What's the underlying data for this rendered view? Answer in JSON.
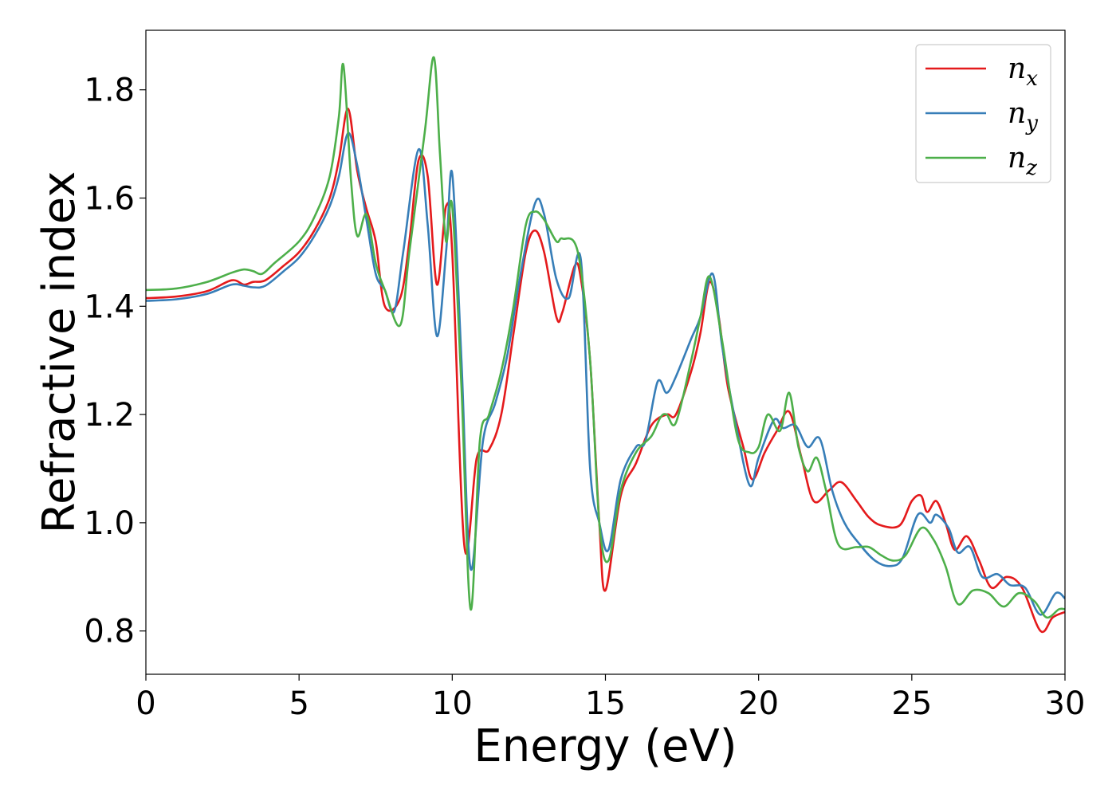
{
  "chart_data": {
    "type": "line",
    "title": "",
    "xlabel": "Energy (eV)",
    "ylabel": "Refractive index",
    "xlim": [
      0,
      30
    ],
    "ylim": [
      0.72,
      1.91
    ],
    "xticks": [
      0,
      5,
      10,
      15,
      20,
      25,
      30
    ],
    "xtick_labels": [
      "0",
      "5",
      "10",
      "15",
      "20",
      "25",
      "30"
    ],
    "yticks": [
      0.8,
      1.0,
      1.2,
      1.4,
      1.6,
      1.8
    ],
    "ytick_labels": [
      "0.8",
      "1.0",
      "1.2",
      "1.4",
      "1.6",
      "1.8"
    ],
    "grid": false,
    "legend_position": "top-right",
    "series": [
      {
        "name": "n",
        "subscript": "x",
        "color": "#e41a1c",
        "points": [
          [
            0,
            1.415
          ],
          [
            1,
            1.418
          ],
          [
            2,
            1.428
          ],
          [
            2.8,
            1.448
          ],
          [
            3.2,
            1.44
          ],
          [
            3.5,
            1.445
          ],
          [
            3.9,
            1.448
          ],
          [
            4.5,
            1.475
          ],
          [
            5,
            1.5
          ],
          [
            5.5,
            1.54
          ],
          [
            6,
            1.6
          ],
          [
            6.3,
            1.67
          ],
          [
            6.6,
            1.765
          ],
          [
            6.9,
            1.65
          ],
          [
            7.2,
            1.58
          ],
          [
            7.5,
            1.52
          ],
          [
            7.8,
            1.4
          ],
          [
            8.3,
            1.415
          ],
          [
            8.6,
            1.52
          ],
          [
            8.9,
            1.67
          ],
          [
            9.2,
            1.64
          ],
          [
            9.5,
            1.44
          ],
          [
            9.8,
            1.585
          ],
          [
            10,
            1.5
          ],
          [
            10.4,
            0.955
          ],
          [
            10.8,
            1.12
          ],
          [
            11.2,
            1.135
          ],
          [
            11.6,
            1.2
          ],
          [
            12,
            1.35
          ],
          [
            12.4,
            1.5
          ],
          [
            12.7,
            1.54
          ],
          [
            13,
            1.5
          ],
          [
            13.4,
            1.38
          ],
          [
            13.6,
            1.39
          ],
          [
            14,
            1.475
          ],
          [
            14.2,
            1.45
          ],
          [
            14.5,
            1.3
          ],
          [
            14.8,
            1.0
          ],
          [
            15,
            0.875
          ],
          [
            15.5,
            1.05
          ],
          [
            16,
            1.11
          ],
          [
            16.5,
            1.18
          ],
          [
            17,
            1.2
          ],
          [
            17.3,
            1.2
          ],
          [
            17.8,
            1.28
          ],
          [
            18.1,
            1.35
          ],
          [
            18.4,
            1.445
          ],
          [
            18.7,
            1.38
          ],
          [
            19,
            1.25
          ],
          [
            19.5,
            1.14
          ],
          [
            19.8,
            1.08
          ],
          [
            20.2,
            1.13
          ],
          [
            20.6,
            1.17
          ],
          [
            21,
            1.205
          ],
          [
            21.4,
            1.12
          ],
          [
            21.8,
            1.04
          ],
          [
            22.3,
            1.06
          ],
          [
            22.7,
            1.075
          ],
          [
            23.2,
            1.04
          ],
          [
            23.6,
            1.01
          ],
          [
            24,
            0.995
          ],
          [
            24.6,
            0.995
          ],
          [
            25,
            1.04
          ],
          [
            25.3,
            1.05
          ],
          [
            25.5,
            1.02
          ],
          [
            25.8,
            1.04
          ],
          [
            26.1,
            1.0
          ],
          [
            26.4,
            0.95
          ],
          [
            26.8,
            0.975
          ],
          [
            27.2,
            0.93
          ],
          [
            27.6,
            0.88
          ],
          [
            28.1,
            0.9
          ],
          [
            28.6,
            0.88
          ],
          [
            29.2,
            0.8
          ],
          [
            29.6,
            0.825
          ],
          [
            30,
            0.835
          ]
        ]
      },
      {
        "name": "n",
        "subscript": "y",
        "color": "#377eb8",
        "points": [
          [
            0,
            1.41
          ],
          [
            1,
            1.413
          ],
          [
            2,
            1.423
          ],
          [
            2.8,
            1.44
          ],
          [
            3.2,
            1.438
          ],
          [
            3.5,
            1.435
          ],
          [
            3.9,
            1.438
          ],
          [
            4.5,
            1.465
          ],
          [
            5,
            1.49
          ],
          [
            5.5,
            1.53
          ],
          [
            6,
            1.585
          ],
          [
            6.3,
            1.64
          ],
          [
            6.6,
            1.72
          ],
          [
            6.9,
            1.66
          ],
          [
            7.2,
            1.56
          ],
          [
            7.5,
            1.46
          ],
          [
            7.8,
            1.43
          ],
          [
            8.1,
            1.39
          ],
          [
            8.4,
            1.5
          ],
          [
            8.9,
            1.69
          ],
          [
            9.2,
            1.55
          ],
          [
            9.5,
            1.345
          ],
          [
            9.8,
            1.5
          ],
          [
            10,
            1.645
          ],
          [
            10.3,
            1.3
          ],
          [
            10.6,
            0.915
          ],
          [
            11,
            1.15
          ],
          [
            11.4,
            1.22
          ],
          [
            11.8,
            1.31
          ],
          [
            12.2,
            1.45
          ],
          [
            12.7,
            1.59
          ],
          [
            13,
            1.57
          ],
          [
            13.4,
            1.45
          ],
          [
            13.8,
            1.415
          ],
          [
            14.2,
            1.485
          ],
          [
            14.5,
            1.1
          ],
          [
            14.8,
            1.0
          ],
          [
            15.1,
            0.95
          ],
          [
            15.5,
            1.08
          ],
          [
            16,
            1.14
          ],
          [
            16.3,
            1.15
          ],
          [
            16.7,
            1.26
          ],
          [
            17,
            1.24
          ],
          [
            17.3,
            1.27
          ],
          [
            17.8,
            1.34
          ],
          [
            18.1,
            1.38
          ],
          [
            18.5,
            1.46
          ],
          [
            18.8,
            1.33
          ],
          [
            19.2,
            1.2
          ],
          [
            19.7,
            1.07
          ],
          [
            20,
            1.12
          ],
          [
            20.5,
            1.19
          ],
          [
            20.8,
            1.175
          ],
          [
            21.2,
            1.18
          ],
          [
            21.6,
            1.14
          ],
          [
            22,
            1.155
          ],
          [
            22.4,
            1.06
          ],
          [
            22.8,
            1.0
          ],
          [
            23.3,
            0.96
          ],
          [
            23.8,
            0.93
          ],
          [
            24.3,
            0.92
          ],
          [
            24.7,
            0.935
          ],
          [
            25.2,
            1.015
          ],
          [
            25.6,
            1.0
          ],
          [
            25.8,
            1.015
          ],
          [
            26.2,
            0.99
          ],
          [
            26.5,
            0.945
          ],
          [
            26.9,
            0.955
          ],
          [
            27.3,
            0.9
          ],
          [
            27.8,
            0.905
          ],
          [
            28.2,
            0.885
          ],
          [
            28.7,
            0.88
          ],
          [
            29.2,
            0.83
          ],
          [
            29.7,
            0.87
          ],
          [
            30,
            0.86
          ]
        ]
      },
      {
        "name": "n",
        "subscript": "z",
        "color": "#4daf4a",
        "points": [
          [
            0,
            1.43
          ],
          [
            1,
            1.433
          ],
          [
            2,
            1.445
          ],
          [
            2.8,
            1.462
          ],
          [
            3.2,
            1.468
          ],
          [
            3.5,
            1.465
          ],
          [
            3.8,
            1.46
          ],
          [
            4.2,
            1.48
          ],
          [
            5,
            1.52
          ],
          [
            5.5,
            1.565
          ],
          [
            6,
            1.64
          ],
          [
            6.3,
            1.75
          ],
          [
            6.45,
            1.845
          ],
          [
            6.7,
            1.63
          ],
          [
            6.9,
            1.53
          ],
          [
            7.2,
            1.57
          ],
          [
            7.5,
            1.48
          ],
          [
            7.8,
            1.43
          ],
          [
            8.3,
            1.365
          ],
          [
            8.6,
            1.5
          ],
          [
            9.1,
            1.72
          ],
          [
            9.4,
            1.86
          ],
          [
            9.6,
            1.68
          ],
          [
            9.8,
            1.52
          ],
          [
            10,
            1.585
          ],
          [
            10.3,
            1.25
          ],
          [
            10.6,
            0.84
          ],
          [
            10.9,
            1.15
          ],
          [
            11.2,
            1.2
          ],
          [
            11.6,
            1.28
          ],
          [
            12,
            1.4
          ],
          [
            12.4,
            1.55
          ],
          [
            12.7,
            1.575
          ],
          [
            13,
            1.56
          ],
          [
            13.4,
            1.52
          ],
          [
            13.6,
            1.525
          ],
          [
            14.1,
            1.5
          ],
          [
            14.5,
            1.3
          ],
          [
            14.8,
            1.0
          ],
          [
            15.1,
            0.93
          ],
          [
            15.5,
            1.06
          ],
          [
            16,
            1.13
          ],
          [
            16.5,
            1.16
          ],
          [
            16.8,
            1.195
          ],
          [
            17,
            1.2
          ],
          [
            17.3,
            1.185
          ],
          [
            17.8,
            1.3
          ],
          [
            18.1,
            1.38
          ],
          [
            18.4,
            1.455
          ],
          [
            18.8,
            1.34
          ],
          [
            19.3,
            1.16
          ],
          [
            19.7,
            1.13
          ],
          [
            20,
            1.14
          ],
          [
            20.3,
            1.2
          ],
          [
            20.7,
            1.17
          ],
          [
            21,
            1.24
          ],
          [
            21.3,
            1.14
          ],
          [
            21.6,
            1.095
          ],
          [
            21.9,
            1.12
          ],
          [
            22.2,
            1.06
          ],
          [
            22.6,
            0.96
          ],
          [
            23.2,
            0.955
          ],
          [
            23.6,
            0.955
          ],
          [
            24,
            0.94
          ],
          [
            24.4,
            0.93
          ],
          [
            24.8,
            0.94
          ],
          [
            25.3,
            0.99
          ],
          [
            25.7,
            0.97
          ],
          [
            26.1,
            0.92
          ],
          [
            26.5,
            0.85
          ],
          [
            27,
            0.875
          ],
          [
            27.5,
            0.87
          ],
          [
            28,
            0.845
          ],
          [
            28.5,
            0.87
          ],
          [
            29,
            0.855
          ],
          [
            29.4,
            0.825
          ],
          [
            29.8,
            0.84
          ],
          [
            30,
            0.84
          ]
        ]
      }
    ]
  }
}
